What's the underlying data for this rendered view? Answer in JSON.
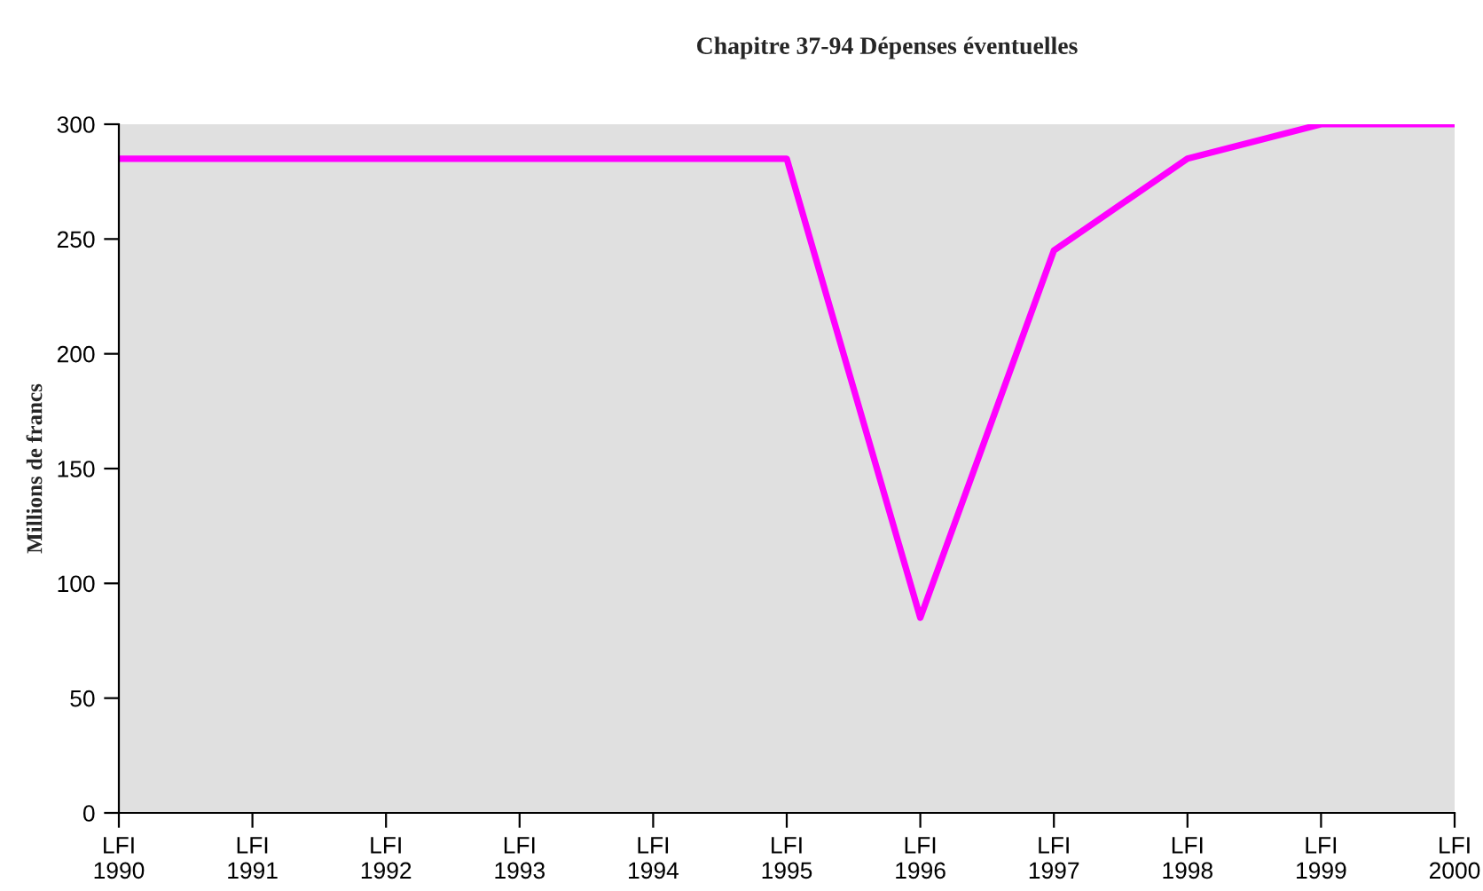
{
  "chart_data": {
    "type": "line",
    "title": "Chapitre 37-94 Dépenses éventuelles",
    "ylabel": "Millions de francs",
    "categories": [
      "LFI\n1990",
      "LFI\n1991",
      "LFI\n1992",
      "LFI\n1993",
      "LFI\n1994",
      "LFI\n1995",
      "LFI\n1996",
      "LFI\n1997",
      "LFI\n1998",
      "LFI\n1999",
      "LFI\n2000"
    ],
    "series": [
      {
        "color": "#ff00ff",
        "values": [
          285,
          285,
          285,
          285,
          285,
          285,
          85,
          245,
          285,
          300,
          300
        ]
      }
    ],
    "ylim": [
      0,
      300
    ],
    "yticks": [
      0,
      50,
      100,
      150,
      200,
      250,
      300
    ],
    "grid": false,
    "marker": "none",
    "line_style": "solid"
  }
}
